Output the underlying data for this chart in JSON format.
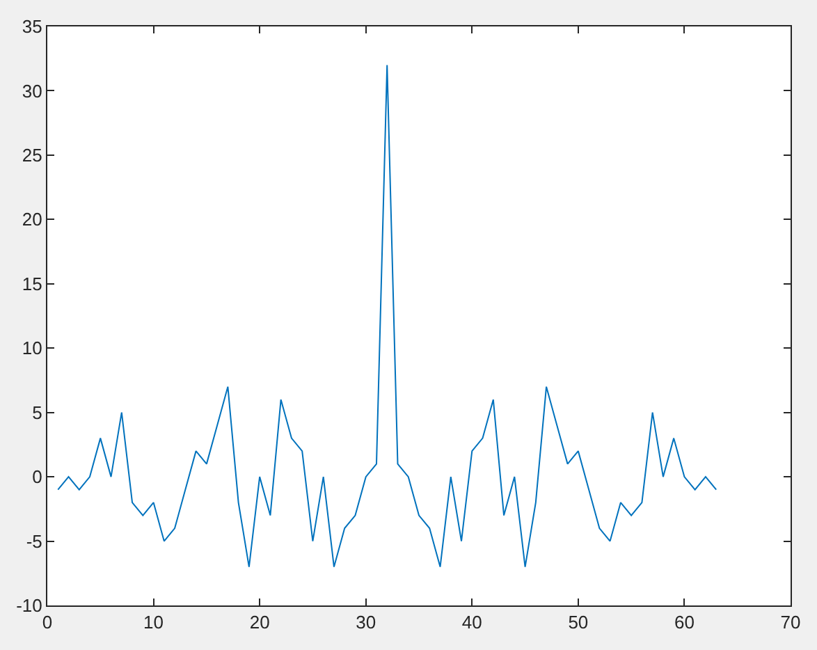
{
  "chart_data": {
    "type": "line",
    "x": [
      1,
      2,
      3,
      4,
      5,
      6,
      7,
      8,
      9,
      10,
      11,
      12,
      13,
      14,
      15,
      16,
      17,
      18,
      19,
      20,
      21,
      22,
      23,
      24,
      25,
      26,
      27,
      28,
      29,
      30,
      31,
      32,
      33,
      34,
      35,
      36,
      37,
      38,
      39,
      40,
      41,
      42,
      43,
      44,
      45,
      46,
      47,
      48,
      49,
      50,
      51,
      52,
      53,
      54,
      55,
      56,
      57,
      58,
      59,
      60,
      61,
      62,
      63
    ],
    "series": [
      {
        "color": "#0072bd",
        "values": [
          -1,
          0,
          -1,
          0,
          3,
          0,
          5,
          -2,
          -3,
          -2,
          -5,
          -4,
          -1,
          2,
          1,
          4,
          7,
          -2,
          -7,
          0,
          -3,
          6,
          3,
          2,
          -5,
          0,
          -7,
          -4,
          -3,
          0,
          1,
          32,
          1,
          0,
          -3,
          -4,
          -7,
          0,
          -5,
          2,
          3,
          6,
          -3,
          0,
          -7,
          -2,
          7,
          4,
          1,
          2,
          -1,
          -4,
          -5,
          -2,
          -3,
          -2,
          5,
          0,
          3,
          0,
          -1,
          0,
          -1
        ]
      }
    ],
    "xlim": [
      0,
      70
    ],
    "xticks": [
      0,
      10,
      20,
      30,
      40,
      50,
      60,
      70
    ],
    "ylim": [
      -10,
      35
    ],
    "yticks": [
      -10,
      -5,
      0,
      5,
      10,
      15,
      20,
      25,
      30,
      35
    ],
    "grid": false,
    "marker": "none",
    "line_style": "solid"
  }
}
